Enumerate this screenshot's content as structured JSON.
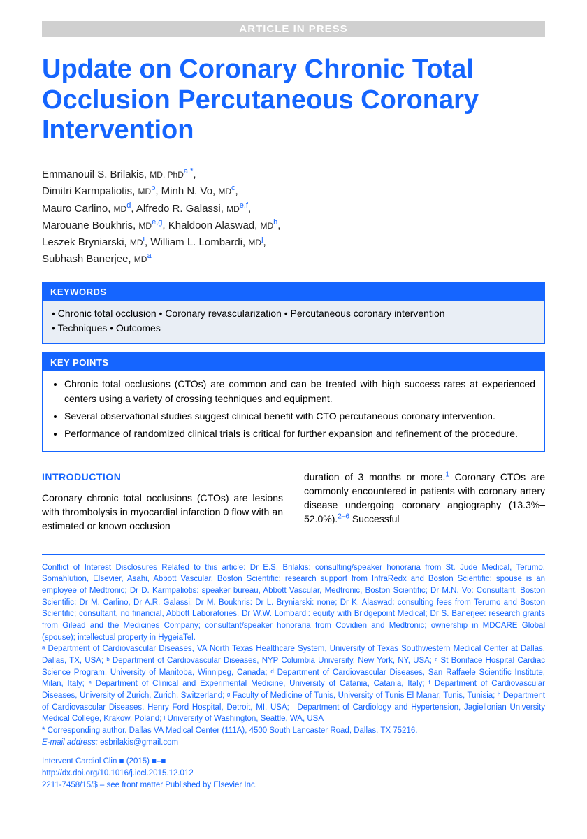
{
  "banner": "ARTICLE IN PRESS",
  "title": "Update on Coronary Chronic Total Occlusion Percutaneous Coronary Intervention",
  "authors": [
    {
      "name": "Emmanouil S. Brilakis",
      "degree": "MD, PhD",
      "aff": "a,",
      "star": "*"
    },
    {
      "name": "Dimitri Karmpaliotis",
      "degree": "MD",
      "aff": "b"
    },
    {
      "name": "Minh N. Vo",
      "degree": "MD",
      "aff": "c"
    },
    {
      "name": "Mauro Carlino",
      "degree": "MD",
      "aff": "d"
    },
    {
      "name": "Alfredo R. Galassi",
      "degree": "MD",
      "aff": "e,f"
    },
    {
      "name": "Marouane Boukhris",
      "degree": "MD",
      "aff": "e,g"
    },
    {
      "name": "Khaldoon Alaswad",
      "degree": "MD",
      "aff": "h"
    },
    {
      "name": "Leszek Bryniarski",
      "degree": "MD",
      "aff": "i"
    },
    {
      "name": "William L. Lombardi",
      "degree": "MD",
      "aff": "j"
    },
    {
      "name": "Subhash Banerjee",
      "degree": "MD",
      "aff": "a"
    }
  ],
  "keywords_header": "KEYWORDS",
  "keywords_line1": "• Chronic total occlusion • Coronary revascularization • Percutaneous coronary intervention",
  "keywords_line2": "• Techniques • Outcomes",
  "keypoints_header": "KEY POINTS",
  "keypoints": [
    "Chronic total occlusions (CTOs) are common and can be treated with high success rates at experienced centers using a variety of crossing techniques and equipment.",
    "Several observational studies suggest clinical benefit with CTO percutaneous coronary intervention.",
    "Performance of randomized clinical trials is critical for further expansion and refinement of the procedure."
  ],
  "intro_heading": "INTRODUCTION",
  "intro_col1": "Coronary chronic total occlusions (CTOs) are lesions with thrombolysis in myocardial infarction 0 flow with an estimated or known occlusion",
  "intro_col2_a": "duration of 3 months or more.",
  "intro_col2_b": " Coronary CTOs are commonly encountered in patients with coronary artery disease undergoing coronary angiography (13.3%–52.0%).",
  "intro_col2_c": " Successful",
  "ref1": "1",
  "ref2": "2–6",
  "coi": "Conflict of Interest Disclosures Related to this article: Dr E.S. Brilakis: consulting/speaker honoraria from St. Jude Medical, Terumo, Somahlution, Elsevier, Asahi, Abbott Vascular, Boston Scientific; research support from InfraRedx and Boston Scientific; spouse is an employee of Medtronic; Dr D. Karmpaliotis: speaker bureau, Abbott Vascular, Medtronic, Boston Scientific; Dr M.N. Vo: Consultant, Boston Scientific; Dr M. Carlino, Dr A.R. Galassi, Dr M. Boukhris: Dr L. Bryniarski: none; Dr K. Alaswad: consulting fees from Terumo and Boston Scientific; consultant, no financial, Abbott Laboratories. Dr W.W. Lombardi: equity with Bridgepoint Medical; Dr S. Banerjee: research grants from Gilead and the Medicines Company; consultant/speaker honoraria from Covidien and Medtronic; ownership in MDCARE Global (spouse); intellectual property in HygeiaTel.",
  "affiliations": "ᵃ Department of Cardiovascular Diseases, VA North Texas Healthcare System, University of Texas Southwestern Medical Center at Dallas, Dallas, TX, USA; ᵇ Department of Cardiovascular Diseases, NYP Columbia University, New York, NY, USA; ᶜ St Boniface Hospital Cardiac Science Program, University of Manitoba, Winnipeg, Canada; ᵈ Department of Cardiovascular Diseases, San Raffaele Scientific Institute, Milan, Italy; ᵉ Department of Clinical and Experimental Medicine, University of Catania, Catania, Italy; ᶠ Department of Cardiovascular Diseases, University of Zurich, Zurich, Switzerland; ᵍ Faculty of Medicine of Tunis, University of Tunis El Manar, Tunis, Tunisia; ʰ Department of Cardiovascular Diseases, Henry Ford Hospital, Detroit, MI, USA; ⁱ Department of Cardiology and Hypertension, Jagiellonian University Medical College, Krakow, Poland; ʲ University of Washington, Seattle, WA, USA",
  "corresponding": "* Corresponding author. Dallas VA Medical Center (111A), 4500 South Lancaster Road, Dallas, TX 75216.",
  "email_label": "E-mail address:",
  "email": "esbrilakis@gmail.com",
  "journal": "Intervent Cardiol Clin ■ (2015) ■–■",
  "doi": "http://dx.doi.org/10.1016/j.iccl.2015.12.012",
  "issn": "2211-7458/15/$ – see front matter Published by Elsevier Inc.",
  "colors": {
    "primary": "#1565ff",
    "banner_bg": "#d0d0d0",
    "keywords_bg": "#e9eef5"
  }
}
